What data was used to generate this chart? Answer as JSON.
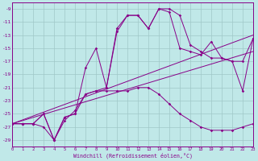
{
  "background_color": "#c0e8e8",
  "grid_color": "#a0c8c8",
  "line_color": "#880088",
  "xlim": [
    0,
    23
  ],
  "ylim": [
    -30,
    -8
  ],
  "xticks": [
    0,
    1,
    2,
    3,
    4,
    5,
    6,
    7,
    8,
    9,
    10,
    11,
    12,
    13,
    14,
    15,
    16,
    17,
    18,
    19,
    20,
    21,
    22,
    23
  ],
  "yticks": [
    -9,
    -11,
    -13,
    -15,
    -17,
    -19,
    -21,
    -23,
    -25,
    -27,
    -29
  ],
  "xlabel": "Windchill (Refroidissement éolien,°C)",
  "trend1": {
    "x": [
      0,
      23
    ],
    "y": [
      -26.5,
      -13.0
    ]
  },
  "trend2": {
    "x": [
      0,
      23
    ],
    "y": [
      -26.5,
      -15.5
    ]
  },
  "series1": {
    "x": [
      0,
      1,
      2,
      3,
      4,
      5,
      6,
      7,
      8,
      9,
      10,
      11,
      12,
      13,
      14,
      15,
      16,
      17,
      18,
      19,
      20,
      21,
      22,
      23
    ],
    "y": [
      -26.5,
      -26.5,
      -26.5,
      -27.0,
      -29.0,
      -26.0,
      -24.5,
      -22.0,
      -21.5,
      -21.5,
      -21.5,
      -21.5,
      -21.0,
      -21.0,
      -22.0,
      -23.5,
      -25.0,
      -26.0,
      -27.0,
      -27.5,
      -27.5,
      -27.5,
      -27.0,
      -26.5
    ]
  },
  "series2": {
    "x": [
      0,
      1,
      2,
      3,
      4,
      5,
      6,
      7,
      8,
      9,
      10,
      11,
      12,
      13,
      14,
      15,
      16,
      17,
      18,
      19,
      20,
      21,
      22,
      23
    ],
    "y": [
      -26.5,
      -26.5,
      -26.5,
      -25.0,
      -29.0,
      -25.5,
      -25.0,
      -22.0,
      -21.5,
      -21.0,
      -12.0,
      -10.0,
      -10.0,
      -12.0,
      -9.0,
      -9.0,
      -10.0,
      -14.5,
      -15.5,
      -16.5,
      -16.5,
      -17.0,
      -17.0,
      -13.5
    ]
  },
  "series3": {
    "x": [
      0,
      1,
      2,
      3,
      4,
      5,
      6,
      7,
      8,
      9,
      10,
      11,
      12,
      13,
      14,
      15,
      16,
      17,
      18,
      19,
      20,
      21,
      22,
      23
    ],
    "y": [
      -26.5,
      -26.5,
      -26.5,
      -25.0,
      -29.0,
      -25.5,
      -25.0,
      -18.0,
      -15.0,
      -21.0,
      -12.5,
      -10.0,
      -10.0,
      -12.0,
      -9.0,
      -9.5,
      -15.0,
      -15.5,
      -16.0,
      -14.0,
      -16.5,
      -17.0,
      -21.5,
      -13.5
    ]
  }
}
